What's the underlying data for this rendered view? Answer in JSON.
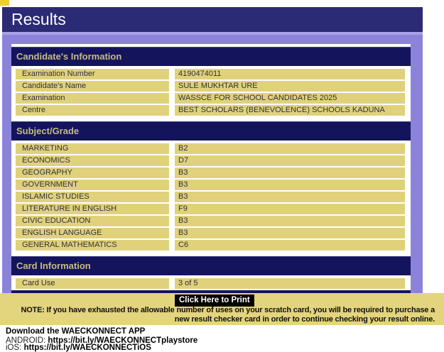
{
  "page": {
    "title": "Results"
  },
  "colors": {
    "header_navy": "#2b2a74",
    "panel_navy": "#14145c",
    "page_purple": "#8b83da",
    "row_khaki": "#e0d17b",
    "band_khaki": "#e3d47e",
    "section_header_text": "#c6bc82",
    "print_button_bg": "#000000"
  },
  "candidate_info": {
    "header": "Candidate's Information",
    "rows": [
      {
        "label": "Examination Number",
        "value": "4190474011"
      },
      {
        "label": "Candidate's Name",
        "value": "SULE MUKHTAR URE"
      },
      {
        "label": "Examination",
        "value": "WASSCE FOR SCHOOL CANDIDATES 2025"
      },
      {
        "label": "Centre",
        "value": "BEST SCHOLARS (BENEVOLENCE) SCHOOLS KADUNA"
      }
    ]
  },
  "subjects": {
    "header": "Subject/Grade",
    "rows": [
      {
        "label": "MARKETING",
        "value": "B2"
      },
      {
        "label": "ECONOMICS",
        "value": "D7"
      },
      {
        "label": "GEOGRAPHY",
        "value": "B3"
      },
      {
        "label": "GOVERNMENT",
        "value": "B3"
      },
      {
        "label": "ISLAMIC STUDIES",
        "value": "B3"
      },
      {
        "label": "LITERATURE IN ENGLISH",
        "value": "F9"
      },
      {
        "label": "CIVIC EDUCATION",
        "value": "B3"
      },
      {
        "label": "ENGLISH LANGUAGE",
        "value": "B3"
      },
      {
        "label": "GENERAL MATHEMATICS",
        "value": "C6"
      }
    ]
  },
  "card_info": {
    "header": "Card Information",
    "rows": [
      {
        "label": "Card Use",
        "value": "3 of 5"
      }
    ]
  },
  "footer": {
    "print_button": "Click Here to Print",
    "note": "NOTE: If you have exhausted the allowable number of uses on your scratch card, you will be required to purchase a new result checker card in order to continue checking your result online.",
    "download_heading": "Download the WAECKONNECT APP",
    "android_label": "ANDROID: ",
    "android_url": "https://bit.ly/WAECKONNECTplaystore",
    "ios_label": "iOS: ",
    "ios_url": "https://bit.ly/WAECKONNECTiOS"
  }
}
